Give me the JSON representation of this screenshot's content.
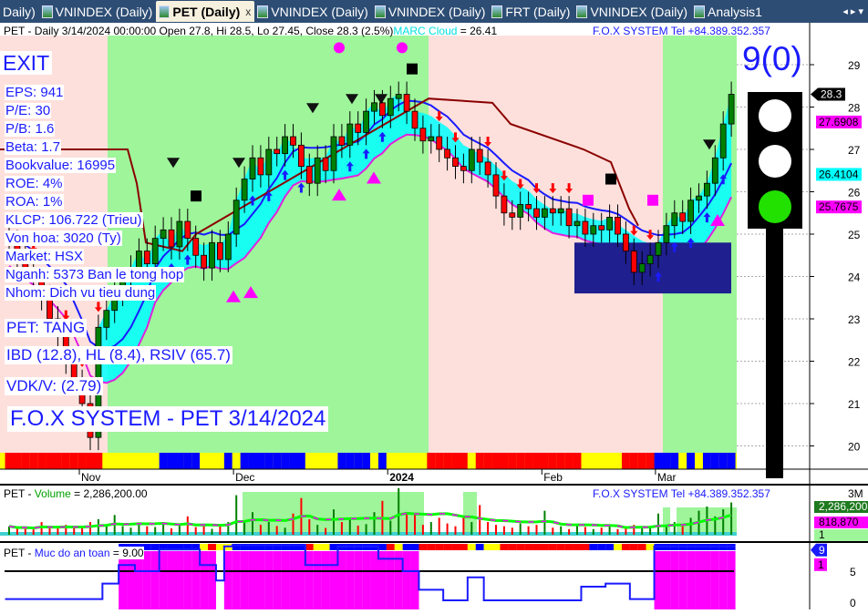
{
  "tabs": [
    {
      "label": "Daily)",
      "active": false
    },
    {
      "label": "VNINDEX (Daily)",
      "active": false
    },
    {
      "label": "PET (Daily)",
      "active": true
    },
    {
      "label": "VNINDEX (Daily)",
      "active": false
    },
    {
      "label": "VNINDEX (Daily)",
      "active": false
    },
    {
      "label": "FRT (Daily)",
      "active": false
    },
    {
      "label": "VNINDEX (Daily)",
      "active": false
    },
    {
      "label": "Analysis1",
      "active": false
    }
  ],
  "tab_close": "x",
  "tab_scroll": "◂ ▸ ▾",
  "header": {
    "title": "PET - Daily 3/14/2024 00:00:00 Open 27.8, Hi 28.5, Lo 27.45, Close 28.3 (2.5%)",
    "marc_label": "MARC Cloud",
    "marc_value": " = 26.41",
    "brand": "F.O.X SYSTEM Tel +84.389.352.357"
  },
  "signal": "EXIT",
  "score": "9(0)",
  "fundamentals": [
    "EPS: 941",
    "P/E: 30",
    "P/B: 1.6",
    "Beta: 1.7",
    "Bookvalue: 16995",
    "ROE: 4%",
    "ROA: 1%",
    "KLCP: 106.722 (Trieu)",
    "Von hoa: 3020 (Ty)",
    "Market: HSX",
    "Nganh: 5373 Ban le tong hop",
    "Nhom: Dich vu tieu dung"
  ],
  "status": "PET: TANG",
  "ratings": "IBD (12.8), HL (8.4), RSIV (65.7)",
  "vdk": "VDK/V:  (2.79)",
  "footer_title": "F.O.X SYSTEM - PET 3/14/2024",
  "traffic_light": {
    "red": "off",
    "yellow": "off",
    "green": "on"
  },
  "colors": {
    "up": "#008000",
    "down": "#ff0000",
    "uptrend_bg": "#9ef59a",
    "downtrend_bg": "#fde0dc",
    "cloud": "#00ffff",
    "accent": "#1a1aff"
  },
  "chart_data": {
    "type": "candlestick",
    "x_labels": [
      "Nov",
      "Dec",
      "2024",
      "Feb",
      "Mar"
    ],
    "x_label_bars": [
      10,
      29,
      48,
      67,
      81
    ],
    "y_ticks": [
      20,
      21,
      22,
      23,
      24,
      25,
      26,
      27,
      28,
      29
    ],
    "ylim": [
      19.6,
      29.4
    ],
    "closes": [
      24.8,
      24.5,
      24.2,
      23.9,
      23.5,
      23,
      22.6,
      22,
      21.5,
      21,
      20.2,
      22.8,
      23.2,
      23.6,
      23.9,
      24.2,
      24.6,
      24.3,
      24.9,
      25.1,
      24.7,
      25.3,
      24.9,
      24.5,
      24.2,
      24.8,
      24.4,
      25,
      25.8,
      26.3,
      26.8,
      26.4,
      27,
      26.9,
      27.3,
      27.1,
      26.6,
      26.2,
      26.8,
      26.5,
      27.3,
      27.1,
      27.6,
      27.4,
      27.9,
      28.1,
      27.8,
      28.2,
      28.3,
      27.9,
      27.5,
      27.2,
      27.3,
      27,
      26.8,
      26.6,
      26.5,
      27,
      26.7,
      26.4,
      25.9,
      25.5,
      25.4,
      25.7,
      25.6,
      25.4,
      25.6,
      25.5,
      25.6,
      25.2,
      25.3,
      25,
      25.2,
      25.1,
      25.4,
      25,
      24.6,
      24.1,
      24.3,
      24.5,
      24.8,
      25.2,
      25.5,
      25.3,
      25.8,
      25.9,
      26.2,
      26.8,
      27.6,
      28.3
    ],
    "trend_band": "RRRRRRRRRRRRYYYYYYYBBBBBYYYBYBBBBBBBBYYYYBBBBYBYYYYYRRRRRYRRRRRRRRRRRRRYYYYYRRRRBBBYBYBBBB",
    "price_labels": [
      {
        "value": "28.3",
        "bg": "#000000",
        "fg": "#ffffff",
        "price": 28.3
      },
      {
        "value": "27.6908",
        "bg": "#ff00ff",
        "fg": "#000000",
        "price": 27.69
      },
      {
        "value": "26.4104",
        "bg": "#00ffff",
        "fg": "#000000",
        "price": 26.41
      },
      {
        "value": "25.7675",
        "bg": "#ff00ff",
        "fg": "#000000",
        "price": 25.77
      }
    ]
  },
  "volume_panel": {
    "title_prefix": "PET - ",
    "title_name": "Volume",
    "title_value": " = 2,286,200.00",
    "brand": "F.O.X SYSTEM Tel +84.389.352.357",
    "axis_max": "3M",
    "last_value": "2,286,200",
    "avg_value": "818,870",
    "flag": "1",
    "volumes_k": [
      600,
      420,
      500,
      380,
      900,
      450,
      520,
      700,
      480,
      560,
      900,
      1100,
      700,
      1400,
      620,
      500,
      880,
      600,
      550,
      820,
      450,
      680,
      1300,
      540,
      700,
      420,
      650,
      900,
      2800,
      1000,
      1600,
      700,
      900,
      620,
      500,
      1500,
      2600,
      1100,
      700,
      480,
      1800,
      900,
      1200,
      650,
      750,
      1600,
      2400,
      1000,
      3300,
      1600,
      1400,
      700,
      900,
      1200,
      800,
      600,
      1300,
      900,
      2100,
      900,
      700,
      600,
      500,
      800,
      600,
      700,
      1700,
      500,
      600,
      400,
      650,
      550,
      400,
      500,
      600,
      400,
      500,
      700,
      600,
      500,
      1500,
      700,
      900,
      600,
      1200,
      1700,
      2000,
      1300,
      1800,
      2286
    ]
  },
  "safety_panel": {
    "title_prefix": "PET - ",
    "title_name": "Muc do an toan",
    "title_value": " = 9.00",
    "axis_ticks": [
      "5",
      "0"
    ],
    "label_blue": "9",
    "label_magenta": "1",
    "values": [
      0.5,
      0.5,
      0.5,
      0.5,
      0.5,
      0.5,
      0.5,
      0.5,
      0.5,
      0.5,
      0.5,
      0.5,
      3,
      3,
      6,
      6,
      5,
      5,
      5,
      8.5,
      8.5,
      8.5,
      8.5,
      8.5,
      6,
      6,
      3.5,
      9,
      9.2,
      9.2,
      9.2,
      9.2,
      9.2,
      9.2,
      9.2,
      9.2,
      9.2,
      6,
      6,
      6,
      6,
      9,
      9,
      9,
      9,
      9,
      7,
      7,
      7,
      5,
      5,
      2,
      2,
      2,
      0.3,
      0.3,
      0.3,
      4,
      4,
      0.3,
      0.3,
      0.3,
      0.3,
      0.3,
      0.3,
      0.3,
      0.3,
      0.3,
      0.3,
      0.3,
      0.3,
      2.5,
      2.5,
      2.5,
      3,
      3,
      3,
      0.5,
      0.5,
      0.5,
      9,
      9,
      9,
      9,
      9,
      9,
      9,
      9,
      9,
      9
    ],
    "band": "WWWWWWWWWWWWWWBBBBBBBBBBYRYYBBBBBBBBBRYYBBBBBBBRYBBRRRRRRYBYYRRRRRRRRRRRBBBYRRRYBBBBBBBBBB"
  }
}
